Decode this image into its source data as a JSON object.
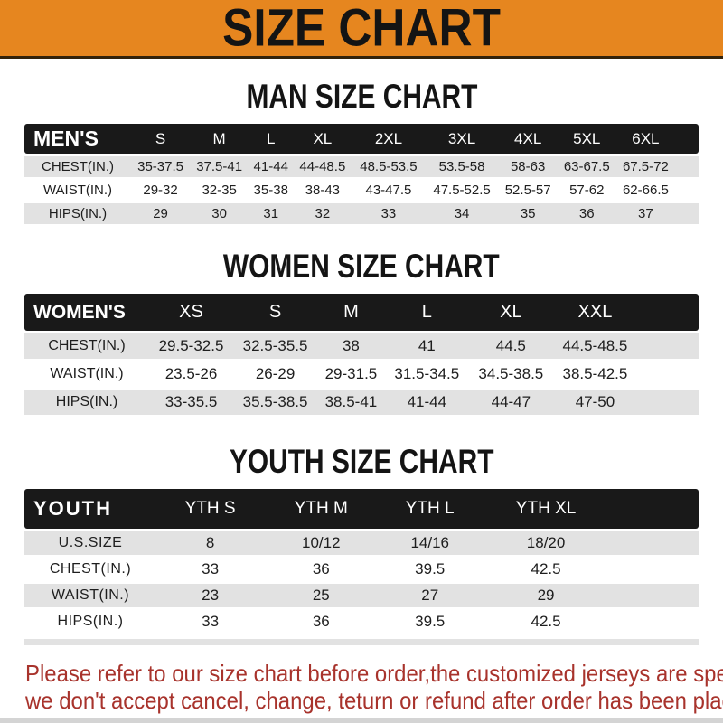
{
  "page": {
    "title": "SIZE CHART"
  },
  "colors": {
    "banner_orange": "#e6861f",
    "header_black": "#191919",
    "row_gray": "#e2e2e2",
    "footer_red": "#a8332c"
  },
  "sections": [
    {
      "id": "men",
      "title": "MAN SIZE CHART",
      "corner_label": "MEN'S",
      "columns": [
        "S",
        "M",
        "L",
        "XL",
        "2XL",
        "3XL",
        "4XL",
        "5XL",
        "6XL"
      ],
      "rows": [
        {
          "label": "CHEST(IN.)",
          "values": [
            "35-37.5",
            "37.5-41",
            "41-44",
            "44-48.5",
            "48.5-53.5",
            "53.5-58",
            "58-63",
            "63-67.5",
            "67.5-72"
          ]
        },
        {
          "label": "WAIST(IN.)",
          "values": [
            "29-32",
            "32-35",
            "35-38",
            "38-43",
            "43-47.5",
            "47.5-52.5",
            "52.5-57",
            "57-62",
            "62-66.5"
          ]
        },
        {
          "label": "HIPS(IN.)",
          "values": [
            "29",
            "30",
            "31",
            "32",
            "33",
            "34",
            "35",
            "36",
            "37"
          ]
        }
      ]
    },
    {
      "id": "women",
      "title": "WOMEN SIZE CHART",
      "corner_label": "WOMEN'S",
      "columns": [
        "XS",
        "S",
        "M",
        "L",
        "XL",
        "XXL"
      ],
      "rows": [
        {
          "label": "CHEST(IN.)",
          "values": [
            "29.5-32.5",
            "32.5-35.5",
            "38",
            "41",
            "44.5",
            "44.5-48.5"
          ]
        },
        {
          "label": "WAIST(IN.)",
          "values": [
            "23.5-26",
            "26-29",
            "29-31.5",
            "31.5-34.5",
            "34.5-38.5",
            "38.5-42.5"
          ]
        },
        {
          "label": "HIPS(IN.)",
          "values": [
            "33-35.5",
            "35.5-38.5",
            "38.5-41",
            "41-44",
            "44-47",
            "47-50"
          ]
        }
      ]
    },
    {
      "id": "youth",
      "title": "YOUTH SIZE CHART",
      "corner_label": "YOUTH",
      "columns": [
        "YTH S",
        "YTH M",
        "YTH L",
        "YTH XL"
      ],
      "rows": [
        {
          "label": "U.S.SIZE",
          "values": [
            "8",
            "10/12",
            "14/16",
            "18/20"
          ]
        },
        {
          "label": "CHEST(IN.)",
          "values": [
            "33",
            "36",
            "39.5",
            "42.5"
          ]
        },
        {
          "label": "WAIST(IN.)",
          "values": [
            "23",
            "25",
            "27",
            "29"
          ]
        },
        {
          "label": "HIPS(IN.)",
          "values": [
            "33",
            "36",
            "39.5",
            "42.5"
          ]
        }
      ]
    }
  ],
  "footer": {
    "line1": "Please refer to our size chart before order,the customized jerseys are special products,",
    "line2": "we don't accept cancel, change, teturn or refund after order has been placed!"
  }
}
